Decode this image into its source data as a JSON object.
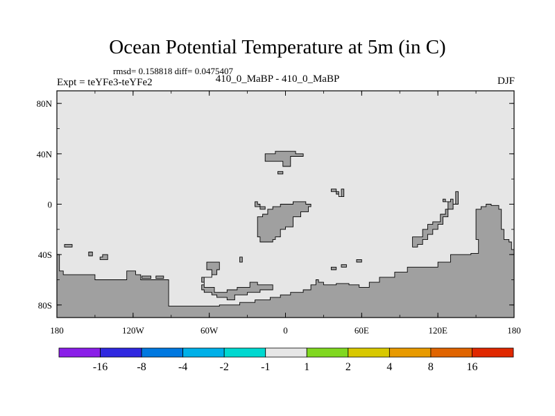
{
  "title": "Ocean Potential Temperature at 5m (in C)",
  "stats": "rmsd= 0.158818 diff= 0.0475407",
  "expt_label": "Expt = teYFe3-teYFe2",
  "expt_name": "410_0_MaBP - 410_0_MaBP",
  "season": "DJF",
  "colors": {
    "ocean": "#e6e6e6",
    "land": "#a0a0a0",
    "outline": "#000000"
  },
  "chart_data": {
    "type": "heatmap",
    "title": "Ocean Potential Temperature at 5m (in C)",
    "xlim": [
      -180,
      180
    ],
    "ylim": [
      -90,
      90
    ],
    "x_ticks": [
      {
        "value": -180,
        "label": "180"
      },
      {
        "value": -120,
        "label": "120W"
      },
      {
        "value": -60,
        "label": "60W"
      },
      {
        "value": 0,
        "label": "0"
      },
      {
        "value": 60,
        "label": "60E"
      },
      {
        "value": 120,
        "label": "120E"
      },
      {
        "value": 180,
        "label": "180"
      }
    ],
    "y_ticks": [
      {
        "value": 80,
        "label": "80N"
      },
      {
        "value": 40,
        "label": "40N"
      },
      {
        "value": 0,
        "label": "0"
      },
      {
        "value": -40,
        "label": "40S"
      },
      {
        "value": -80,
        "label": "80S"
      }
    ],
    "field_value_range": [
      -1,
      1
    ],
    "land_polygons": [
      {
        "name": "antarctica",
        "coords": [
          [
            -180,
            -40
          ],
          [
            -178,
            -40
          ],
          [
            -178,
            -53
          ],
          [
            -175,
            -53
          ],
          [
            -175,
            -56
          ],
          [
            -150,
            -56
          ],
          [
            -150,
            -60
          ],
          [
            -125,
            -60
          ],
          [
            -125,
            -53
          ],
          [
            -118,
            -53
          ],
          [
            -118,
            -56
          ],
          [
            -114,
            -56
          ],
          [
            -114,
            -60
          ],
          [
            -92,
            -60
          ],
          [
            -92,
            -81
          ],
          [
            -52,
            -81
          ],
          [
            -52,
            -80
          ],
          [
            -36,
            -80
          ],
          [
            -36,
            -78
          ],
          [
            -24,
            -78
          ],
          [
            -24,
            -76
          ],
          [
            -12,
            -76
          ],
          [
            -12,
            -74
          ],
          [
            -4,
            -74
          ],
          [
            -4,
            -72
          ],
          [
            4,
            -72
          ],
          [
            4,
            -70
          ],
          [
            14,
            -70
          ],
          [
            14,
            -68
          ],
          [
            20,
            -68
          ],
          [
            20,
            -64
          ],
          [
            24,
            -64
          ],
          [
            24,
            -60
          ],
          [
            26,
            -60
          ],
          [
            26,
            -62
          ],
          [
            30,
            -62
          ],
          [
            30,
            -64
          ],
          [
            40,
            -64
          ],
          [
            40,
            -63
          ],
          [
            50,
            -63
          ],
          [
            50,
            -64
          ],
          [
            58,
            -64
          ],
          [
            58,
            -66
          ],
          [
            66,
            -66
          ],
          [
            66,
            -62
          ],
          [
            74,
            -62
          ],
          [
            74,
            -58
          ],
          [
            86,
            -58
          ],
          [
            86,
            -54
          ],
          [
            96,
            -54
          ],
          [
            96,
            -50
          ],
          [
            120,
            -50
          ],
          [
            120,
            -46
          ],
          [
            130,
            -46
          ],
          [
            130,
            -40
          ],
          [
            146,
            -40
          ],
          [
            146,
            -39
          ],
          [
            152,
            -39
          ],
          [
            152,
            -28
          ],
          [
            150,
            -28
          ],
          [
            150,
            -4
          ],
          [
            154,
            -4
          ],
          [
            154,
            -2
          ],
          [
            158,
            -2
          ],
          [
            158,
            0
          ],
          [
            162,
            0
          ],
          [
            162,
            -1
          ],
          [
            168,
            -1
          ],
          [
            168,
            -4
          ],
          [
            170,
            -4
          ],
          [
            170,
            -20
          ],
          [
            172,
            -20
          ],
          [
            172,
            -28
          ],
          [
            176,
            -28
          ],
          [
            176,
            -30
          ],
          [
            178,
            -30
          ],
          [
            178,
            -36
          ],
          [
            180,
            -36
          ],
          [
            180,
            -90
          ],
          [
            -180,
            -90
          ]
        ]
      },
      {
        "name": "africa",
        "coords": [
          [
            -22,
            -26
          ],
          [
            -20,
            -26
          ],
          [
            -20,
            -30
          ],
          [
            -10,
            -30
          ],
          [
            -10,
            -28
          ],
          [
            -8,
            -28
          ],
          [
            -8,
            -26
          ],
          [
            -4,
            -26
          ],
          [
            -4,
            -20
          ],
          [
            0,
            -20
          ],
          [
            0,
            -18
          ],
          [
            6,
            -18
          ],
          [
            6,
            -10
          ],
          [
            12,
            -10
          ],
          [
            12,
            -6
          ],
          [
            18,
            -6
          ],
          [
            18,
            -2
          ],
          [
            20,
            -2
          ],
          [
            20,
            0
          ],
          [
            16,
            0
          ],
          [
            16,
            2
          ],
          [
            6,
            2
          ],
          [
            6,
            0
          ],
          [
            -4,
            0
          ],
          [
            -4,
            -2
          ],
          [
            -10,
            -2
          ],
          [
            -10,
            -4
          ],
          [
            -14,
            -4
          ],
          [
            -14,
            -8
          ],
          [
            -18,
            -8
          ],
          [
            -18,
            -10
          ],
          [
            -22,
            -10
          ],
          [
            -22,
            -20
          ]
        ]
      },
      {
        "name": "north-africa-bits",
        "coords": [
          [
            -24,
            2
          ],
          [
            -22,
            2
          ],
          [
            -22,
            0
          ],
          [
            -20,
            0
          ],
          [
            -20,
            -2
          ],
          [
            -16,
            -2
          ],
          [
            -16,
            -4
          ],
          [
            -20,
            -4
          ],
          [
            -20,
            -2
          ],
          [
            -24,
            -2
          ]
        ]
      },
      {
        "name": "europe",
        "coords": [
          [
            -16,
            40
          ],
          [
            -8,
            40
          ],
          [
            -8,
            42
          ],
          [
            8,
            42
          ],
          [
            8,
            40
          ],
          [
            14,
            40
          ],
          [
            14,
            38
          ],
          [
            4,
            38
          ],
          [
            4,
            30
          ],
          [
            -2,
            30
          ],
          [
            -2,
            34
          ],
          [
            -16,
            34
          ]
        ]
      },
      {
        "name": "europe-islet",
        "coords": [
          [
            -6,
            26
          ],
          [
            -2,
            26
          ],
          [
            -2,
            24
          ],
          [
            -6,
            24
          ]
        ]
      },
      {
        "name": "arabia-bits",
        "coords": [
          [
            36,
            12
          ],
          [
            40,
            12
          ],
          [
            40,
            10
          ],
          [
            42,
            10
          ],
          [
            42,
            6
          ],
          [
            44,
            6
          ],
          [
            44,
            12
          ],
          [
            46,
            12
          ],
          [
            46,
            6
          ],
          [
            42,
            6
          ],
          [
            42,
            8
          ],
          [
            40,
            8
          ],
          [
            40,
            10
          ],
          [
            36,
            10
          ]
        ]
      },
      {
        "name": "south-america",
        "coords": [
          [
            -62,
            -46
          ],
          [
            -62,
            -52
          ],
          [
            -58,
            -52
          ],
          [
            -58,
            -58
          ],
          [
            -64,
            -58
          ],
          [
            -64,
            -66
          ],
          [
            -56,
            -66
          ],
          [
            -56,
            -70
          ],
          [
            -46,
            -70
          ],
          [
            -46,
            -68
          ],
          [
            -38,
            -68
          ],
          [
            -38,
            -66
          ],
          [
            -28,
            -66
          ],
          [
            -28,
            -62
          ],
          [
            -22,
            -62
          ],
          [
            -22,
            -64
          ],
          [
            -10,
            -64
          ],
          [
            -10,
            -68
          ],
          [
            -20,
            -68
          ],
          [
            -20,
            -70
          ],
          [
            -30,
            -70
          ],
          [
            -30,
            -72
          ],
          [
            -40,
            -72
          ],
          [
            -40,
            -76
          ],
          [
            -46,
            -76
          ],
          [
            -46,
            -74
          ],
          [
            -54,
            -74
          ],
          [
            -54,
            -72
          ],
          [
            -58,
            -72
          ],
          [
            -58,
            -70
          ],
          [
            -64,
            -70
          ],
          [
            -64,
            -68
          ],
          [
            -66,
            -68
          ],
          [
            -66,
            -64
          ],
          [
            -64,
            -64
          ],
          [
            -64,
            -62
          ],
          [
            -66,
            -62
          ],
          [
            -66,
            -58
          ],
          [
            -58,
            -58
          ],
          [
            -58,
            -56
          ],
          [
            -54,
            -56
          ],
          [
            -54,
            -52
          ],
          [
            -52,
            -52
          ],
          [
            -52,
            -46
          ]
        ]
      },
      {
        "name": "india-bits",
        "coords": [
          [
            124,
            4
          ],
          [
            126,
            4
          ],
          [
            126,
            2
          ],
          [
            128,
            2
          ],
          [
            128,
            -4
          ],
          [
            126,
            -4
          ],
          [
            126,
            -8
          ],
          [
            122,
            -8
          ],
          [
            122,
            -14
          ],
          [
            116,
            -14
          ],
          [
            116,
            -16
          ],
          [
            112,
            -16
          ],
          [
            112,
            -20
          ],
          [
            108,
            -20
          ],
          [
            108,
            -26
          ],
          [
            100,
            -26
          ],
          [
            100,
            -34
          ],
          [
            104,
            -34
          ],
          [
            104,
            -32
          ],
          [
            108,
            -32
          ],
          [
            108,
            -28
          ],
          [
            112,
            -28
          ],
          [
            112,
            -24
          ],
          [
            116,
            -24
          ],
          [
            116,
            -20
          ],
          [
            120,
            -20
          ],
          [
            120,
            -16
          ],
          [
            124,
            -16
          ],
          [
            124,
            -10
          ],
          [
            128,
            -10
          ],
          [
            128,
            -4
          ],
          [
            132,
            -4
          ],
          [
            132,
            0
          ],
          [
            134,
            0
          ],
          [
            134,
            10
          ],
          [
            136,
            10
          ],
          [
            136,
            0
          ],
          [
            132,
            0
          ],
          [
            132,
            4
          ],
          [
            130,
            4
          ],
          [
            130,
            2
          ],
          [
            124,
            2
          ]
        ]
      },
      {
        "name": "island-1",
        "coords": [
          [
            -174,
            -32
          ],
          [
            -168,
            -32
          ],
          [
            -168,
            -34
          ],
          [
            -174,
            -34
          ]
        ]
      },
      {
        "name": "island-2",
        "coords": [
          [
            -155,
            -38
          ],
          [
            -152,
            -38
          ],
          [
            -152,
            -41
          ],
          [
            -155,
            -41
          ]
        ]
      },
      {
        "name": "island-3",
        "coords": [
          [
            -144,
            -40
          ],
          [
            -140,
            -40
          ],
          [
            -140,
            -44
          ],
          [
            -146,
            -44
          ],
          [
            -146,
            -42
          ],
          [
            -144,
            -42
          ]
        ]
      },
      {
        "name": "island-4",
        "coords": [
          [
            -113,
            -57
          ],
          [
            -106,
            -57
          ],
          [
            -106,
            -59
          ],
          [
            -113,
            -59
          ]
        ]
      },
      {
        "name": "island-5",
        "coords": [
          [
            -102,
            -57
          ],
          [
            -96,
            -57
          ],
          [
            -96,
            -59
          ],
          [
            -102,
            -59
          ]
        ]
      },
      {
        "name": "island-6",
        "coords": [
          [
            -36,
            -42
          ],
          [
            -34,
            -42
          ],
          [
            -34,
            -46
          ],
          [
            -36,
            -46
          ]
        ]
      },
      {
        "name": "island-7",
        "coords": [
          [
            36,
            -50
          ],
          [
            40,
            -50
          ],
          [
            40,
            -52
          ],
          [
            36,
            -52
          ]
        ]
      },
      {
        "name": "island-8",
        "coords": [
          [
            44,
            -48
          ],
          [
            48,
            -48
          ],
          [
            48,
            -50
          ],
          [
            44,
            -50
          ]
        ]
      },
      {
        "name": "island-9",
        "coords": [
          [
            56,
            -44
          ],
          [
            60,
            -44
          ],
          [
            60,
            -46
          ],
          [
            56,
            -46
          ]
        ]
      }
    ],
    "colorbar": {
      "colors": [
        "#8a1ee8",
        "#3028e0",
        "#0078e0",
        "#00b0e8",
        "#00d8d0",
        "#e6e6e6",
        "#80d820",
        "#d8c800",
        "#e89a00",
        "#e06400",
        "#e02800"
      ],
      "labels": [
        "-16",
        "-8",
        "-4",
        "-2",
        "-1",
        "1",
        "2",
        "4",
        "8",
        "16"
      ]
    }
  }
}
